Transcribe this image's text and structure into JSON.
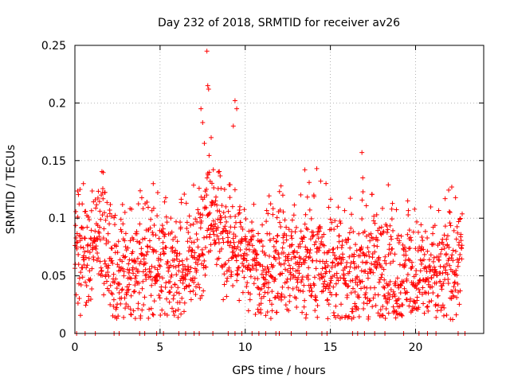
{
  "chart_data": {
    "type": "scatter",
    "title": "Day 232 of 2018, SRMTID for receiver av26",
    "xlabel": "GPS time / hours",
    "ylabel": "SRMTID / TECUs",
    "xlim": [
      0,
      24
    ],
    "ylim": [
      0,
      0.25
    ],
    "x_ticks": [
      0,
      5,
      10,
      15,
      20
    ],
    "x_tick_labels": [
      "0",
      "5",
      "10",
      "15",
      "20"
    ],
    "y_ticks": [
      0,
      0.05,
      0.1,
      0.15,
      0.2,
      0.25
    ],
    "y_tick_labels": [
      "0",
      "0.05",
      "0.1",
      "0.15",
      "0.2",
      "0.25"
    ],
    "grid": true,
    "marker": "+",
    "color": "#ff0000",
    "series": [
      {
        "name": "SRMTID av26",
        "profile_hours": [
          0,
          0.5,
          1,
          1.5,
          2,
          2.5,
          3,
          3.5,
          4,
          4.5,
          5,
          5.5,
          6,
          6.5,
          7,
          7.5,
          8,
          8.5,
          9,
          9.5,
          10,
          10.5,
          11,
          11.5,
          12,
          12.5,
          13,
          13.5,
          14,
          14.5,
          15,
          15.5,
          16,
          16.5,
          17,
          17.5,
          18,
          18.5,
          19,
          19.5,
          20,
          20.5,
          21,
          21.5,
          22,
          22.5
        ],
        "profile_median": [
          0.07,
          0.065,
          0.07,
          0.075,
          0.065,
          0.055,
          0.06,
          0.055,
          0.06,
          0.06,
          0.055,
          0.05,
          0.045,
          0.055,
          0.065,
          0.09,
          0.11,
          0.085,
          0.075,
          0.08,
          0.065,
          0.055,
          0.05,
          0.05,
          0.055,
          0.06,
          0.06,
          0.065,
          0.065,
          0.065,
          0.055,
          0.055,
          0.05,
          0.05,
          0.055,
          0.055,
          0.055,
          0.05,
          0.05,
          0.055,
          0.05,
          0.05,
          0.045,
          0.05,
          0.055,
          0.065
        ],
        "peak_points": [
          [
            7.75,
            0.245
          ],
          [
            7.8,
            0.215
          ],
          [
            7.85,
            0.212
          ],
          [
            7.4,
            0.195
          ],
          [
            9.4,
            0.202
          ],
          [
            9.5,
            0.195
          ],
          [
            9.3,
            0.18
          ],
          [
            7.5,
            0.183
          ],
          [
            8.0,
            0.17
          ],
          [
            7.6,
            0.165
          ],
          [
            16.85,
            0.157
          ],
          [
            13.5,
            0.142
          ],
          [
            14.2,
            0.143
          ],
          [
            0.3,
            0.125
          ],
          [
            0.5,
            0.13
          ],
          [
            4.6,
            0.13
          ],
          [
            18.4,
            0.129
          ],
          [
            12.1,
            0.128
          ],
          [
            16.9,
            0.135
          ]
        ],
        "zero_hours": [
          0.1,
          0.6,
          1.2,
          2.3,
          2.6,
          3.8,
          4.1,
          4.8,
          5.2,
          6.1,
          6.5,
          7.0,
          7.3,
          8.1,
          9.0,
          9.4,
          9.8,
          10.4,
          10.8,
          11.2,
          11.8,
          12.0,
          12.7,
          13.6,
          14.5,
          14.8,
          16.3,
          16.6,
          17.0,
          17.6,
          18.2,
          19.3,
          20.2,
          20.7,
          21.2,
          22.5,
          22.9
        ]
      }
    ]
  }
}
